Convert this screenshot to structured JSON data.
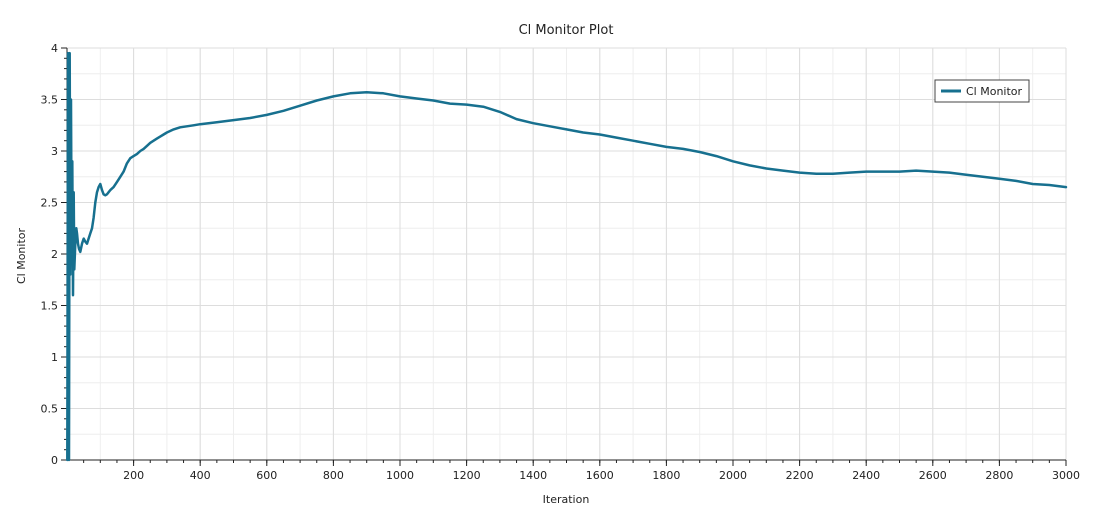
{
  "chart_data": {
    "type": "line",
    "title": "Cl Monitor Plot",
    "xlabel": "Iteration",
    "ylabel": "Cl Monitor",
    "xlim": [
      0,
      3000
    ],
    "ylim": [
      0,
      4
    ],
    "x_ticks": [
      200,
      400,
      600,
      800,
      1000,
      1200,
      1400,
      1600,
      1800,
      2000,
      2200,
      2400,
      2600,
      2800,
      3000
    ],
    "y_ticks": [
      0,
      0.5,
      1,
      1.5,
      2,
      2.5,
      3,
      3.5,
      4
    ],
    "grid": true,
    "legend_position": "top-right",
    "series": [
      {
        "name": "Cl Monitor",
        "color": "#17708f",
        "x": [
          1,
          3,
          6,
          8,
          10,
          12,
          14,
          16,
          18,
          20,
          22,
          25,
          28,
          30,
          33,
          36,
          40,
          45,
          50,
          55,
          60,
          65,
          70,
          75,
          80,
          85,
          90,
          95,
          100,
          105,
          110,
          115,
          120,
          125,
          130,
          140,
          150,
          160,
          170,
          180,
          190,
          200,
          210,
          220,
          230,
          240,
          250,
          260,
          270,
          280,
          290,
          300,
          320,
          340,
          360,
          380,
          400,
          450,
          500,
          550,
          600,
          650,
          700,
          750,
          800,
          850,
          900,
          950,
          1000,
          1050,
          1100,
          1150,
          1200,
          1250,
          1300,
          1350,
          1400,
          1450,
          1500,
          1550,
          1600,
          1650,
          1700,
          1750,
          1800,
          1850,
          1900,
          1950,
          2000,
          2050,
          2100,
          2150,
          2200,
          2250,
          2300,
          2350,
          2400,
          2450,
          2500,
          2550,
          2600,
          2650,
          2700,
          2750,
          2800,
          2850,
          2900,
          2950,
          3000
        ],
        "y": [
          0,
          3.95,
          0,
          3.95,
          1.8,
          3.5,
          1.9,
          2.9,
          1.6,
          2.6,
          1.85,
          2.1,
          2.25,
          2.2,
          2.1,
          2.05,
          2.02,
          2.1,
          2.15,
          2.12,
          2.1,
          2.15,
          2.2,
          2.25,
          2.35,
          2.5,
          2.6,
          2.65,
          2.68,
          2.62,
          2.58,
          2.57,
          2.58,
          2.6,
          2.62,
          2.65,
          2.7,
          2.75,
          2.8,
          2.88,
          2.93,
          2.95,
          2.97,
          3.0,
          3.02,
          3.05,
          3.08,
          3.1,
          3.12,
          3.14,
          3.16,
          3.18,
          3.21,
          3.23,
          3.24,
          3.25,
          3.26,
          3.28,
          3.3,
          3.32,
          3.35,
          3.39,
          3.44,
          3.49,
          3.53,
          3.56,
          3.57,
          3.56,
          3.53,
          3.51,
          3.49,
          3.46,
          3.45,
          3.43,
          3.38,
          3.31,
          3.27,
          3.24,
          3.21,
          3.18,
          3.16,
          3.13,
          3.1,
          3.07,
          3.04,
          3.02,
          2.99,
          2.95,
          2.9,
          2.86,
          2.83,
          2.81,
          2.79,
          2.78,
          2.78,
          2.79,
          2.8,
          2.8,
          2.8,
          2.81,
          2.8,
          2.79,
          2.77,
          2.75,
          2.73,
          2.71,
          2.68,
          2.67,
          2.65
        ]
      }
    ]
  }
}
